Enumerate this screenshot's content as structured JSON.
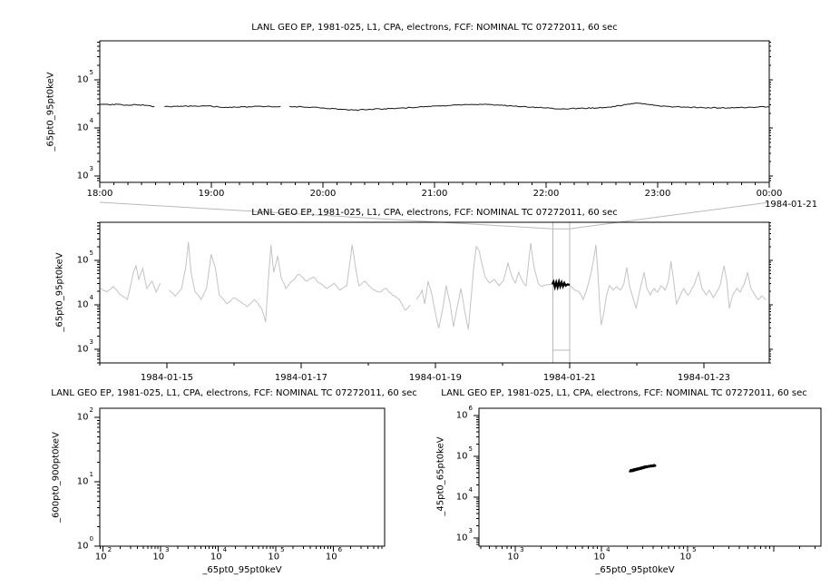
{
  "palette": {
    "background": "#ffffff",
    "axis": "#000000",
    "detail_line": "#161616",
    "context_line": "#c3c3c3",
    "overlay": "#b9b9b9",
    "highlight": "#000000",
    "scatter": "#000000"
  },
  "chart_data": [
    {
      "id": "detail-timeseries",
      "type": "line",
      "title": "LANL GEO EP, 1981-025, L1, CPA, electrons, FCF: NOMINAL TC 07272011, 60 sec",
      "ylabel": "_65pt0_95pt0keV",
      "annotations": {
        "end_date": "1984-01-21"
      },
      "xaxis": {
        "type": "time",
        "unit": "hours",
        "min": 18,
        "max": 24,
        "minor_step": 0.125,
        "majors": [
          {
            "v": 18,
            "label": "18:00"
          },
          {
            "v": 19,
            "label": "19:00"
          },
          {
            "v": 20,
            "label": "20:00"
          },
          {
            "v": 21,
            "label": "21:00"
          },
          {
            "v": 22,
            "label": "22:00"
          },
          {
            "v": 23,
            "label": "23:00"
          },
          {
            "v": 24,
            "label": "00:00"
          }
        ]
      },
      "yaxis": {
        "type": "log",
        "min_exp": 2.87,
        "max_exp": 5.81,
        "labeled_exps": [
          3,
          4,
          5
        ]
      },
      "segments": [
        [
          [
            18.0,
            31000
          ],
          [
            18.08,
            30500
          ],
          [
            18.16,
            31000
          ],
          [
            18.24,
            30000
          ],
          [
            18.32,
            30500
          ],
          [
            18.4,
            29500
          ],
          [
            18.46,
            28500
          ],
          [
            18.49,
            28000
          ]
        ],
        [
          [
            18.58,
            27500
          ],
          [
            18.68,
            28000
          ],
          [
            18.78,
            28500
          ],
          [
            18.88,
            28000
          ],
          [
            19.0,
            28500
          ],
          [
            19.08,
            27000
          ],
          [
            19.15,
            26500
          ],
          [
            19.25,
            27000
          ],
          [
            19.35,
            27500
          ],
          [
            19.45,
            28000
          ],
          [
            19.55,
            27500
          ],
          [
            19.62,
            28000
          ]
        ],
        [
          [
            19.7,
            28000
          ],
          [
            19.85,
            27000
          ],
          [
            20.0,
            26000
          ],
          [
            20.15,
            24500
          ],
          [
            20.28,
            23500
          ],
          [
            20.4,
            24000
          ],
          [
            20.55,
            25000
          ],
          [
            20.7,
            26000
          ],
          [
            20.85,
            27000
          ],
          [
            21.0,
            28500
          ],
          [
            21.15,
            29500
          ],
          [
            21.3,
            30500
          ],
          [
            21.42,
            31000
          ],
          [
            21.55,
            30000
          ],
          [
            21.7,
            28500
          ],
          [
            21.85,
            27000
          ],
          [
            22.0,
            26000
          ],
          [
            22.15,
            25000
          ],
          [
            22.3,
            25500
          ],
          [
            22.45,
            26000
          ],
          [
            22.6,
            28000
          ],
          [
            22.72,
            30500
          ],
          [
            22.8,
            33000
          ],
          [
            22.9,
            31000
          ],
          [
            23.0,
            29000
          ],
          [
            23.1,
            28000
          ],
          [
            23.25,
            27000
          ],
          [
            23.4,
            26500
          ],
          [
            23.55,
            26000
          ],
          [
            23.7,
            26500
          ],
          [
            23.85,
            27000
          ],
          [
            24.0,
            27500
          ]
        ]
      ]
    },
    {
      "id": "context-timeseries",
      "type": "line",
      "title": "LANL GEO EP, 1981-025, L1, CPA, electrons, FCF: NOMINAL TC 07272011, 60 sec",
      "ylabel": "_65pt0_95pt0keV",
      "xaxis": {
        "type": "time",
        "unit": "days of 1984-01",
        "min": 14,
        "max": 23.973,
        "minor_step": 1,
        "majors": [
          {
            "v": 15,
            "label": "1984-01-15"
          },
          {
            "v": 17,
            "label": "1984-01-17"
          },
          {
            "v": 19,
            "label": "1984-01-19"
          },
          {
            "v": 21,
            "label": "1984-01-21"
          },
          {
            "v": 23,
            "label": "1984-01-23"
          }
        ]
      },
      "yaxis": {
        "type": "log",
        "min_exp": 2.694,
        "max_exp": 5.857,
        "labeled_exps": [
          3,
          4,
          5
        ]
      },
      "zoom_window": {
        "x_start": 20.75,
        "x_end": 21.0,
        "y_min_exp": 2.98,
        "y_max_exp": 5.71
      },
      "segments": [
        [
          [
            14.0,
            23400
          ],
          [
            14.11,
            19500
          ],
          [
            14.2,
            25700
          ],
          [
            14.3,
            17400
          ],
          [
            14.41,
            13200
          ],
          [
            14.5,
            53700
          ],
          [
            14.54,
            75900
          ],
          [
            14.58,
            37200
          ],
          [
            14.64,
            66100
          ],
          [
            14.7,
            23400
          ],
          [
            14.78,
            33900
          ],
          [
            14.84,
            19500
          ],
          [
            14.9,
            30900
          ]
        ],
        [
          [
            15.03,
            21400
          ],
          [
            15.12,
            15850
          ],
          [
            15.22,
            23400
          ],
          [
            15.28,
            69200
          ],
          [
            15.32,
            257000
          ],
          [
            15.36,
            53700
          ],
          [
            15.42,
            19500
          ],
          [
            15.51,
            13200
          ],
          [
            15.59,
            23400
          ],
          [
            15.66,
            138000
          ],
          [
            15.72,
            69200
          ],
          [
            15.78,
            16600
          ],
          [
            15.89,
            10500
          ],
          [
            16.0,
            14500
          ],
          [
            16.09,
            12000
          ],
          [
            16.19,
            9100
          ],
          [
            16.3,
            13200
          ],
          [
            16.41,
            8300
          ],
          [
            16.47,
            4100
          ],
          [
            16.51,
            33900
          ],
          [
            16.55,
            224000
          ],
          [
            16.59,
            53700
          ],
          [
            16.65,
            126000
          ],
          [
            16.7,
            42700
          ],
          [
            16.77,
            23400
          ],
          [
            16.86,
            33900
          ],
          [
            16.97,
            49000
          ],
          [
            17.08,
            33900
          ],
          [
            17.18,
            42700
          ],
          [
            17.27,
            30900
          ],
          [
            17.38,
            23400
          ],
          [
            17.49,
            30900
          ],
          [
            17.58,
            21400
          ],
          [
            17.68,
            26900
          ],
          [
            17.76,
            224000
          ],
          [
            17.81,
            69200
          ],
          [
            17.86,
            26900
          ],
          [
            17.95,
            33900
          ],
          [
            18.05,
            23400
          ],
          [
            18.16,
            19500
          ],
          [
            18.27,
            23400
          ],
          [
            18.36,
            16600
          ],
          [
            18.46,
            13200
          ],
          [
            18.55,
            7600
          ],
          [
            18.63,
            10000
          ]
        ],
        [
          [
            18.72,
            13200
          ],
          [
            18.8,
            21400
          ],
          [
            18.84,
            10500
          ],
          [
            18.89,
            33900
          ],
          [
            18.95,
            16600
          ],
          [
            19.0,
            6600
          ],
          [
            19.05,
            3000
          ],
          [
            19.11,
            8300
          ],
          [
            19.16,
            26900
          ],
          [
            19.22,
            10500
          ],
          [
            19.27,
            3200
          ],
          [
            19.32,
            8300
          ],
          [
            19.38,
            23400
          ],
          [
            19.43,
            8300
          ],
          [
            19.49,
            2800
          ],
          [
            19.53,
            13200
          ],
          [
            19.57,
            69200
          ],
          [
            19.61,
            204000
          ],
          [
            19.65,
            166000
          ],
          [
            19.69,
            87000
          ],
          [
            19.74,
            42700
          ],
          [
            19.81,
            30900
          ],
          [
            19.88,
            37200
          ],
          [
            19.95,
            26900
          ],
          [
            20.01,
            33900
          ],
          [
            20.08,
            87000
          ],
          [
            20.14,
            42700
          ],
          [
            20.19,
            30900
          ],
          [
            20.24,
            53700
          ],
          [
            20.3,
            33900
          ],
          [
            20.35,
            26900
          ],
          [
            20.42,
            245000
          ],
          [
            20.47,
            69200
          ],
          [
            20.53,
            30900
          ],
          [
            20.59,
            25700
          ],
          [
            20.66,
            28200
          ],
          [
            20.75,
            29500
          ],
          [
            20.85,
            28200
          ],
          [
            20.95,
            29000
          ],
          [
            21.0,
            28000
          ],
          [
            21.05,
            23400
          ],
          [
            21.14,
            19500
          ],
          [
            21.2,
            13200
          ],
          [
            21.27,
            26900
          ],
          [
            21.32,
            53700
          ],
          [
            21.36,
            110000
          ],
          [
            21.39,
            224000
          ],
          [
            21.42,
            53700
          ],
          [
            21.45,
            8300
          ],
          [
            21.47,
            3500
          ],
          [
            21.51,
            6600
          ],
          [
            21.55,
            16600
          ],
          [
            21.59,
            26900
          ],
          [
            21.65,
            21400
          ],
          [
            21.7,
            25700
          ],
          [
            21.76,
            21400
          ],
          [
            21.81,
            30900
          ],
          [
            21.85,
            69200
          ],
          [
            21.89,
            26900
          ],
          [
            21.95,
            13200
          ],
          [
            21.99,
            8300
          ],
          [
            22.03,
            16600
          ],
          [
            22.07,
            30900
          ],
          [
            22.11,
            53700
          ],
          [
            22.15,
            23400
          ],
          [
            22.2,
            16600
          ],
          [
            22.26,
            23400
          ],
          [
            22.31,
            19500
          ],
          [
            22.36,
            26900
          ],
          [
            22.42,
            21400
          ],
          [
            22.47,
            33900
          ],
          [
            22.51,
            95500
          ],
          [
            22.55,
            33900
          ],
          [
            22.59,
            10500
          ],
          [
            22.65,
            16600
          ],
          [
            22.7,
            23400
          ],
          [
            22.76,
            16600
          ],
          [
            22.81,
            21400
          ],
          [
            22.86,
            29500
          ],
          [
            22.92,
            53700
          ],
          [
            22.97,
            23400
          ],
          [
            23.03,
            16600
          ],
          [
            23.08,
            21400
          ],
          [
            23.14,
            14500
          ],
          [
            23.19,
            19500
          ],
          [
            23.24,
            26900
          ],
          [
            23.3,
            75900
          ],
          [
            23.34,
            33900
          ],
          [
            23.38,
            8300
          ],
          [
            23.43,
            16600
          ],
          [
            23.49,
            23400
          ],
          [
            23.54,
            19500
          ],
          [
            23.59,
            26900
          ],
          [
            23.65,
            53700
          ],
          [
            23.7,
            23400
          ],
          [
            23.76,
            16600
          ],
          [
            23.81,
            13200
          ],
          [
            23.86,
            15850
          ],
          [
            23.93,
            13200
          ]
        ]
      ],
      "highlight_segment": [
        [
          20.74,
          29000
        ],
        [
          20.76,
          33000
        ],
        [
          20.78,
          25000
        ],
        [
          20.8,
          32000
        ],
        [
          20.82,
          25000
        ],
        [
          20.84,
          33000
        ],
        [
          20.86,
          26000
        ],
        [
          20.88,
          32000
        ],
        [
          20.9,
          26000
        ],
        [
          20.92,
          31000
        ],
        [
          20.94,
          27000
        ],
        [
          20.97,
          29000
        ],
        [
          21.0,
          28000
        ]
      ]
    },
    {
      "id": "scatter-600-900",
      "type": "scatter",
      "title": "LANL GEO EP, 1981-025, L1, CPA, electrons, FCF: NOMINAL TC 07272011, 60 sec",
      "ylabel": "_600pt0_900pt0keV",
      "xlabel": "_65pt0_95pt0keV",
      "xaxis": {
        "type": "log",
        "min_exp": 1.945,
        "max_exp": 6.89,
        "labeled_exps": [
          2,
          3,
          4,
          5,
          6
        ]
      },
      "yaxis": {
        "type": "log",
        "min_exp": 0,
        "max_exp": 2.141,
        "labeled_exps": [
          0,
          1,
          2
        ]
      },
      "points": []
    },
    {
      "id": "scatter-45-65",
      "type": "scatter",
      "title": "LANL GEO EP, 1981-025, L1, CPA, electrons, FCF: NOMINAL TC 07272011, 60 sec",
      "ylabel": "_45pt0_65pt0keV",
      "xlabel": "_65pt0_95pt0keV",
      "xaxis": {
        "type": "log",
        "min_exp": 2.579,
        "max_exp": 6.547,
        "labeled_exps": [
          3,
          4,
          5
        ]
      },
      "yaxis": {
        "type": "log",
        "min_exp": 2.8,
        "max_exp": 6.178,
        "labeled_exps": [
          3,
          4,
          5,
          6
        ]
      },
      "points": [
        [
          21500,
          43000
        ],
        [
          22000,
          46000
        ],
        [
          22500,
          44000
        ],
        [
          23000,
          47000
        ],
        [
          23500,
          45000
        ],
        [
          24000,
          48000
        ],
        [
          24500,
          46000
        ],
        [
          25000,
          49000
        ],
        [
          25500,
          47000
        ],
        [
          26000,
          50000
        ],
        [
          26500,
          48000
        ],
        [
          27000,
          51000
        ],
        [
          27500,
          49000
        ],
        [
          28000,
          52000
        ],
        [
          28500,
          50000
        ],
        [
          29000,
          53000
        ],
        [
          29500,
          51000
        ],
        [
          30000,
          54000
        ],
        [
          30500,
          52000
        ],
        [
          31000,
          55000
        ],
        [
          31500,
          53000
        ],
        [
          32000,
          56000
        ],
        [
          32500,
          54000
        ],
        [
          33000,
          57000
        ],
        [
          34000,
          55000
        ],
        [
          35000,
          58000
        ],
        [
          36000,
          56000
        ],
        [
          37000,
          59000
        ],
        [
          38000,
          57000
        ],
        [
          39000,
          60000
        ],
        [
          40000,
          58000
        ],
        [
          41000,
          61000
        ],
        [
          42000,
          59000
        ],
        [
          23000,
          44000
        ],
        [
          25000,
          46500
        ],
        [
          27000,
          48500
        ],
        [
          29000,
          50500
        ],
        [
          31000,
          52500
        ],
        [
          33000,
          54500
        ],
        [
          26000,
          47500
        ],
        [
          28000,
          49500
        ],
        [
          30000,
          51500
        ],
        [
          24000,
          45500
        ],
        [
          35000,
          57000
        ],
        [
          37000,
          58500
        ]
      ]
    }
  ]
}
